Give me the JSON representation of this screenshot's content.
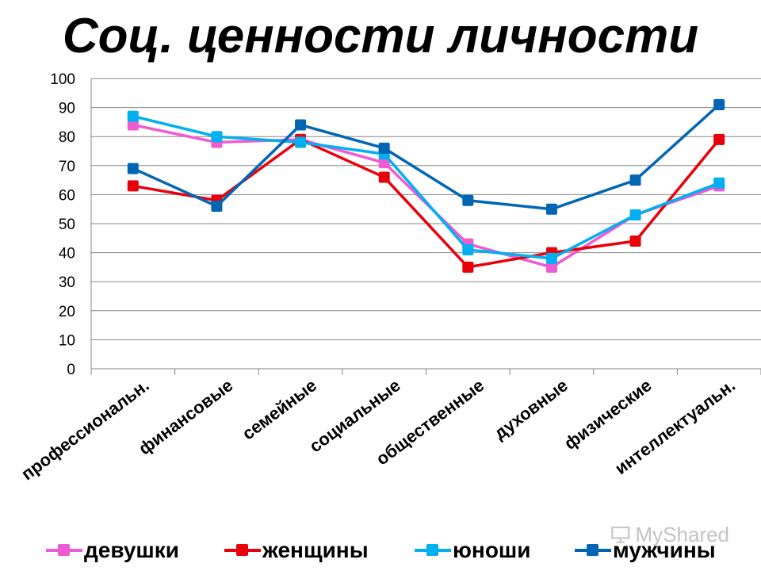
{
  "watermark": {
    "icon": "presentation-screen-icon",
    "text": "MyShared"
  },
  "chart_data": {
    "type": "line",
    "title": "Соц. ценности личности",
    "xlabel": "",
    "ylabel": "",
    "ylim": [
      0,
      100
    ],
    "yticks": [
      0,
      10,
      20,
      30,
      40,
      50,
      60,
      70,
      80,
      90,
      100
    ],
    "grid": true,
    "legend": "bottom",
    "categories": [
      "профессиональн.",
      "финансовые",
      "семейные",
      "социальные",
      "общественные",
      "духовные",
      "физические",
      "интеллектуальн."
    ],
    "series": [
      {
        "name": "девушки",
        "color": "#ef5bd2",
        "marker": "square",
        "values": [
          84,
          78,
          79,
          71,
          43,
          35,
          53,
          63
        ]
      },
      {
        "name": "женщины",
        "color": "#e8000b",
        "marker": "square",
        "values": [
          63,
          58,
          79,
          66,
          35,
          40,
          44,
          79
        ]
      },
      {
        "name": "юноши",
        "color": "#00b0f0",
        "marker": "square",
        "values": [
          87,
          80,
          78,
          74,
          41,
          38,
          53,
          64
        ]
      },
      {
        "name": "мужчины",
        "color": "#0066b3",
        "marker": "square",
        "values": [
          69,
          56,
          84,
          76,
          58,
          55,
          65,
          91
        ]
      }
    ]
  }
}
